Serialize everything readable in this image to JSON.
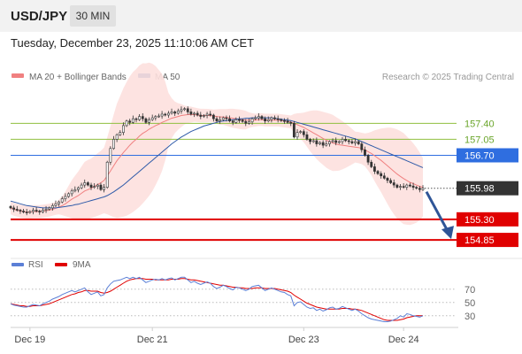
{
  "header": {
    "symbol": "USD/JPY",
    "timeframe": "30 MIN"
  },
  "datetime": "Tuesday, December 23, 2025 11:10:06 AM CET",
  "legend": {
    "items": [
      {
        "label": "MA 20 + Bollinger Bands",
        "color": "#f08080"
      },
      {
        "label": "MA 50",
        "color": "#2e5aa8"
      }
    ],
    "credit": "Research © 2025 Trading Central"
  },
  "rsi_legend": {
    "items": [
      {
        "label": "RSI",
        "color": "#5b7fd6"
      },
      {
        "label": "9MA",
        "color": "#e00000"
      }
    ]
  },
  "chart_data": [
    {
      "type": "candlestick",
      "x_tick_labels": [
        "Dec 19",
        "Dec 21",
        "Dec 23",
        "Dec 24"
      ],
      "ylim": [
        154.6,
        158.2
      ],
      "levels": [
        {
          "value": 157.4,
          "label": "157.40",
          "kind": "resistance-green",
          "color": "#8fbf3f"
        },
        {
          "value": 157.05,
          "label": "157.05",
          "kind": "resistance-green",
          "color": "#8fbf3f"
        },
        {
          "value": 156.7,
          "label": "156.70",
          "kind": "pivot",
          "color": "#2f6ee0"
        },
        {
          "value": 155.98,
          "label": "155.98",
          "kind": "last-price",
          "color": "#333333"
        },
        {
          "value": 155.3,
          "label": "155.30",
          "kind": "support-red",
          "color": "#e00000"
        },
        {
          "value": 154.85,
          "label": "154.85",
          "kind": "support-red",
          "color": "#e00000"
        }
      ],
      "last_price": 155.98,
      "projection": {
        "from": 155.98,
        "to": 154.85,
        "direction": "down"
      },
      "series": [
        {
          "name": "Close",
          "values": [
            155.55,
            155.52,
            155.5,
            155.48,
            155.46,
            155.45,
            155.47,
            155.5,
            155.48,
            155.46,
            155.5,
            155.52,
            155.55,
            155.6,
            155.64,
            155.68,
            155.75,
            155.8,
            155.86,
            155.92,
            155.95,
            155.99,
            156.05,
            156.1,
            156.05,
            156.0,
            156.02,
            156.05,
            155.95,
            156.0,
            156.55,
            156.85,
            157.05,
            157.15,
            157.2,
            157.35,
            157.45,
            157.42,
            157.5,
            157.48,
            157.55,
            157.5,
            157.42,
            157.48,
            157.52,
            157.55,
            157.56,
            157.6,
            157.58,
            157.62,
            157.65,
            157.62,
            157.67,
            157.7,
            157.72,
            157.65,
            157.6,
            157.62,
            157.58,
            157.55,
            157.57,
            157.6,
            157.58,
            157.5,
            157.45,
            157.48,
            157.52,
            157.5,
            157.45,
            157.42,
            157.48,
            157.47,
            157.44,
            157.4,
            157.43,
            157.5,
            157.52,
            157.55,
            157.5,
            157.45,
            157.48,
            157.52,
            157.5,
            157.48,
            157.46,
            157.45,
            157.42,
            157.4,
            157.1,
            157.2,
            157.22,
            157.15,
            157.05,
            157.0,
            157.02,
            156.95,
            156.98,
            156.92,
            156.95,
            157.0,
            157.02,
            156.98,
            157.0,
            157.05,
            157.02,
            157.0,
            156.97,
            157.0,
            156.95,
            156.82,
            156.7,
            156.55,
            156.45,
            156.35,
            156.3,
            156.25,
            156.2,
            156.15,
            156.1,
            156.05,
            156.0,
            156.02,
            156.0,
            156.05,
            156.03,
            156.0,
            155.98,
            155.95,
            155.98
          ]
        },
        {
          "name": "MA 20",
          "values": [
            155.55,
            155.52,
            155.5,
            155.48,
            155.47,
            155.46,
            155.46,
            155.47,
            155.47,
            155.47,
            155.48,
            155.49,
            155.5,
            155.52,
            155.54,
            155.57,
            155.6,
            155.64,
            155.69,
            155.74,
            155.78,
            155.82,
            155.87,
            155.92,
            155.95,
            155.98,
            156.02,
            156.06,
            156.1,
            156.15,
            156.25,
            156.36,
            156.47,
            156.58,
            156.67,
            156.76,
            156.84,
            156.92,
            156.99,
            157.05,
            157.12,
            157.18,
            157.22,
            157.27,
            157.31,
            157.35,
            157.38,
            157.42,
            157.45,
            157.48,
            157.51,
            157.53,
            157.55,
            157.57,
            157.58,
            157.59,
            157.59,
            157.59,
            157.58,
            157.57,
            157.57,
            157.57,
            157.57,
            157.56,
            157.55,
            157.54,
            157.54,
            157.53,
            157.52,
            157.51,
            157.5,
            157.49,
            157.48,
            157.47,
            157.47,
            157.47,
            157.47,
            157.48,
            157.48,
            157.47,
            157.47,
            157.47,
            157.47,
            157.47,
            157.46,
            157.45,
            157.44,
            157.43,
            157.4,
            157.37,
            157.34,
            157.31,
            157.27,
            157.23,
            157.19,
            157.15,
            157.11,
            157.07,
            157.03,
            157.0,
            156.97,
            156.95,
            156.93,
            156.92,
            156.91,
            156.9,
            156.89,
            156.88,
            156.87,
            156.85,
            156.82,
            156.78,
            156.74,
            156.69,
            156.64,
            156.59,
            156.53,
            156.47,
            156.41,
            156.35,
            156.29,
            156.24,
            156.19,
            156.15,
            156.11,
            156.08,
            156.05,
            156.02,
            156.0
          ]
        },
        {
          "name": "MA 50",
          "values": [
            155.7,
            155.68,
            155.66,
            155.64,
            155.62,
            155.6,
            155.59,
            155.58,
            155.57,
            155.56,
            155.55,
            155.55,
            155.55,
            155.55,
            155.55,
            155.56,
            155.57,
            155.58,
            155.59,
            155.6,
            155.62,
            155.63,
            155.65,
            155.67,
            155.69,
            155.71,
            155.73,
            155.75,
            155.77,
            155.79,
            155.82,
            155.86,
            155.9,
            155.95,
            156.0,
            156.05,
            156.11,
            156.17,
            156.23,
            156.29,
            156.35,
            156.41,
            156.47,
            156.53,
            156.59,
            156.65,
            156.71,
            156.77,
            156.83,
            156.89,
            156.95,
            157.0,
            157.05,
            157.1,
            157.14,
            157.18,
            157.22,
            157.25,
            157.28,
            157.31,
            157.34,
            157.36,
            157.38,
            157.4,
            157.42,
            157.44,
            157.45,
            157.46,
            157.47,
            157.48,
            157.49,
            157.5,
            157.5,
            157.51,
            157.51,
            157.52,
            157.52,
            157.52,
            157.52,
            157.52,
            157.52,
            157.52,
            157.51,
            157.5,
            157.49,
            157.48,
            157.47,
            157.46,
            157.44,
            157.42,
            157.4,
            157.38,
            157.36,
            157.34,
            157.32,
            157.3,
            157.28,
            157.26,
            157.24,
            157.22,
            157.2,
            157.18,
            157.16,
            157.14,
            157.12,
            157.1,
            157.08,
            157.06,
            157.03,
            157.0,
            156.97,
            156.94,
            156.91,
            156.88,
            156.85,
            156.82,
            156.79,
            156.76,
            156.73,
            156.7,
            156.67,
            156.64,
            156.61,
            156.58,
            156.55,
            156.52,
            156.49,
            156.46,
            156.43
          ]
        }
      ]
    },
    {
      "type": "line",
      "name": "RSI",
      "ylim": [
        15,
        95
      ],
      "y_tick_labels": [
        "70",
        "50",
        "30"
      ],
      "y_ticks": [
        70,
        50,
        30
      ],
      "series": [
        {
          "name": "RSI",
          "values": [
            48,
            46,
            45,
            44,
            43,
            43,
            45,
            47,
            46,
            45,
            48,
            50,
            52,
            55,
            57,
            59,
            62,
            64,
            66,
            68,
            66,
            68,
            70,
            72,
            66,
            62,
            64,
            66,
            60,
            62,
            72,
            78,
            82,
            83,
            84,
            86,
            88,
            86,
            88,
            86,
            88,
            84,
            80,
            82,
            84,
            85,
            84,
            86,
            84,
            86,
            87,
            84,
            86,
            88,
            88,
            84,
            80,
            82,
            79,
            77,
            79,
            81,
            79,
            74,
            71,
            73,
            76,
            74,
            71,
            69,
            73,
            72,
            70,
            68,
            70,
            74,
            75,
            76,
            72,
            68,
            70,
            72,
            70,
            68,
            66,
            65,
            62,
            60,
            45,
            50,
            51,
            47,
            43,
            41,
            42,
            38,
            40,
            37,
            39,
            42,
            43,
            40,
            41,
            44,
            42,
            40,
            38,
            40,
            37,
            33,
            30,
            27,
            25,
            24,
            23,
            22,
            21,
            21,
            22,
            24,
            26,
            30,
            28,
            33,
            32,
            30,
            29,
            28,
            30
          ]
        },
        {
          "name": "9MA",
          "values": [
            48,
            47,
            46,
            45,
            45,
            44,
            44,
            45,
            45,
            45,
            46,
            47,
            48,
            50,
            52,
            54,
            56,
            58,
            60,
            62,
            63,
            65,
            66,
            68,
            68,
            67,
            67,
            67,
            65,
            64,
            65,
            67,
            70,
            73,
            76,
            79,
            82,
            84,
            85,
            86,
            86,
            86,
            85,
            85,
            85,
            84,
            84,
            84,
            84,
            84,
            85,
            85,
            85,
            86,
            86,
            85,
            84,
            84,
            83,
            82,
            81,
            80,
            79,
            78,
            77,
            76,
            76,
            75,
            74,
            73,
            73,
            72,
            72,
            71,
            71,
            71,
            72,
            72,
            72,
            71,
            71,
            71,
            71,
            70,
            69,
            68,
            67,
            65,
            61,
            58,
            55,
            52,
            49,
            47,
            45,
            43,
            42,
            41,
            40,
            40,
            40,
            40,
            40,
            41,
            41,
            41,
            40,
            40,
            39,
            38,
            36,
            34,
            32,
            30,
            28,
            26,
            24,
            23,
            23,
            23,
            23,
            24,
            25,
            27,
            28,
            29,
            30,
            30,
            30
          ]
        }
      ]
    }
  ]
}
